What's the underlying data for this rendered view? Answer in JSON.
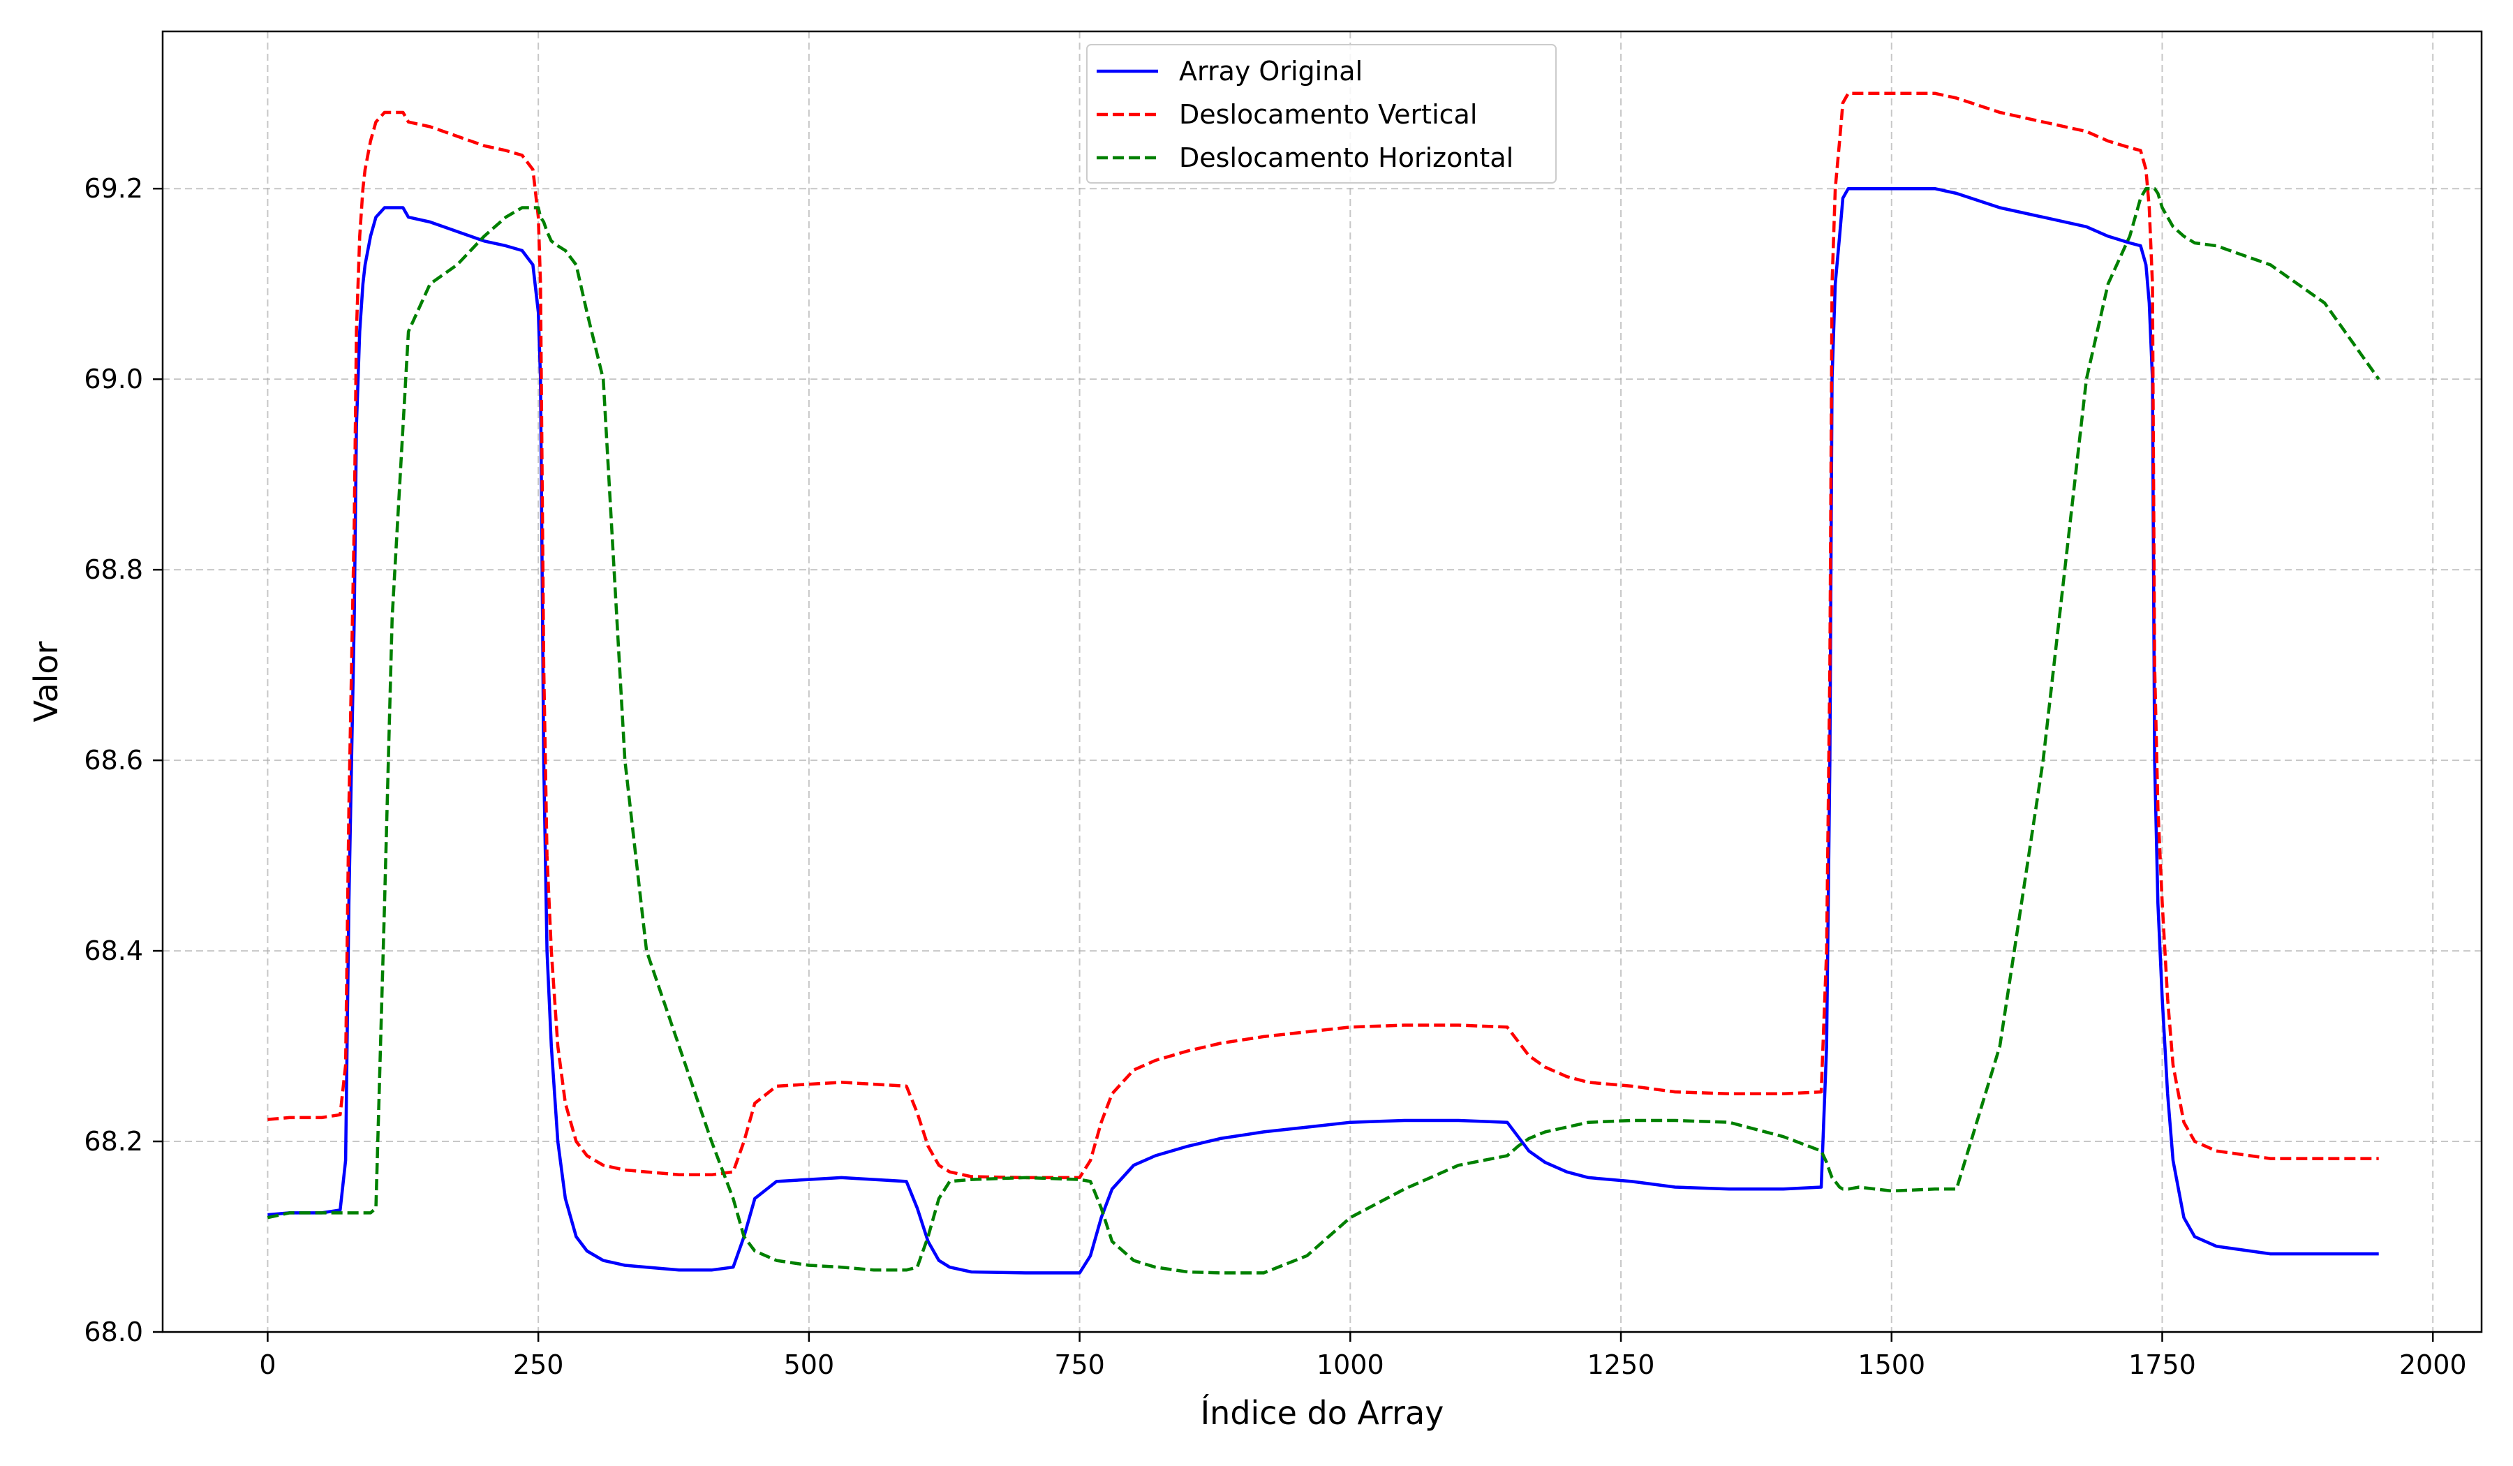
{
  "chart_data": {
    "type": "line",
    "title": "",
    "xlabel": "Índice do Array",
    "ylabel": "Valor",
    "xlim": [
      -97,
      2045
    ],
    "ylim": [
      68.0,
      69.365
    ],
    "xticks": [
      0,
      250,
      500,
      750,
      1000,
      1250,
      1500,
      1750,
      2000
    ],
    "xtick_labels": [
      "0",
      "250",
      "500",
      "750",
      "1000",
      "1250",
      "1500",
      "1750",
      "2000"
    ],
    "yticks": [
      68.0,
      68.2,
      68.4,
      68.6,
      68.8,
      69.0,
      69.2
    ],
    "ytick_labels": [
      "68.0",
      "68.2",
      "68.4",
      "68.6",
      "68.8",
      "69.0",
      "69.2"
    ],
    "grid": true,
    "legend_position": "top-center",
    "series": [
      {
        "name": "Array Original",
        "color": "#0000ff",
        "dash": "solid",
        "x": [
          0,
          20,
          50,
          67,
          72,
          75,
          80,
          82,
          85,
          88,
          90,
          95,
          100,
          108,
          115,
          125,
          130,
          150,
          175,
          200,
          220,
          235,
          245,
          250,
          252,
          255,
          258,
          262,
          268,
          275,
          285,
          295,
          310,
          330,
          350,
          380,
          410,
          430,
          440,
          450,
          470,
          500,
          530,
          560,
          590,
          600,
          610,
          620,
          630,
          650,
          700,
          750,
          760,
          770,
          780,
          800,
          820,
          850,
          880,
          920,
          960,
          1000,
          1050,
          1100,
          1145,
          1155,
          1165,
          1180,
          1200,
          1220,
          1260,
          1300,
          1350,
          1400,
          1435,
          1440,
          1443,
          1445,
          1448,
          1452,
          1455,
          1460,
          1470,
          1500,
          1540,
          1560,
          1600,
          1640,
          1680,
          1700,
          1720,
          1730,
          1735,
          1738,
          1741,
          1743,
          1746,
          1750,
          1755,
          1760,
          1770,
          1780,
          1800,
          1850,
          1900,
          1950
        ],
        "y": [
          68.123,
          68.125,
          68.125,
          68.128,
          68.18,
          68.45,
          68.75,
          68.95,
          69.05,
          69.1,
          69.12,
          69.15,
          69.17,
          69.18,
          69.18,
          69.18,
          69.17,
          69.165,
          69.155,
          69.145,
          69.14,
          69.135,
          69.12,
          69.07,
          69.0,
          68.6,
          68.4,
          68.3,
          68.2,
          68.14,
          68.1,
          68.085,
          68.075,
          68.07,
          68.068,
          68.065,
          68.065,
          68.068,
          68.1,
          68.14,
          68.158,
          68.16,
          68.162,
          68.16,
          68.158,
          68.13,
          68.095,
          68.075,
          68.068,
          68.063,
          68.062,
          68.062,
          68.08,
          68.12,
          68.15,
          68.175,
          68.185,
          68.195,
          68.203,
          68.21,
          68.215,
          68.22,
          68.222,
          68.222,
          68.22,
          68.205,
          68.19,
          68.178,
          68.168,
          68.162,
          68.158,
          68.152,
          68.15,
          68.15,
          68.152,
          68.3,
          68.6,
          69.0,
          69.1,
          69.15,
          69.19,
          69.2,
          69.2,
          69.2,
          69.2,
          69.195,
          69.18,
          69.17,
          69.16,
          69.15,
          69.143,
          69.14,
          69.12,
          69.08,
          69.0,
          68.6,
          68.45,
          68.35,
          68.25,
          68.18,
          68.12,
          68.1,
          68.09,
          68.082,
          68.082,
          68.082
        ]
      },
      {
        "name": "Deslocamento Vertical",
        "color": "#ff0000",
        "dash": "dashed",
        "x": [
          0,
          20,
          50,
          67,
          72,
          75,
          80,
          82,
          85,
          88,
          90,
          95,
          100,
          108,
          115,
          125,
          130,
          150,
          175,
          200,
          220,
          235,
          245,
          250,
          252,
          255,
          258,
          262,
          268,
          275,
          285,
          295,
          310,
          330,
          350,
          380,
          410,
          430,
          440,
          450,
          470,
          500,
          530,
          560,
          590,
          600,
          610,
          620,
          630,
          650,
          700,
          750,
          760,
          770,
          780,
          800,
          820,
          850,
          880,
          920,
          960,
          1000,
          1050,
          1100,
          1145,
          1155,
          1165,
          1180,
          1200,
          1220,
          1260,
          1300,
          1350,
          1400,
          1435,
          1440,
          1443,
          1445,
          1448,
          1452,
          1455,
          1460,
          1470,
          1500,
          1540,
          1560,
          1600,
          1640,
          1680,
          1700,
          1720,
          1730,
          1735,
          1738,
          1741,
          1743,
          1746,
          1750,
          1755,
          1760,
          1770,
          1780,
          1800,
          1850,
          1900,
          1950
        ],
        "y": [
          68.223,
          68.225,
          68.225,
          68.228,
          68.28,
          68.55,
          68.85,
          69.05,
          69.15,
          69.2,
          69.22,
          69.25,
          69.27,
          69.28,
          69.28,
          69.28,
          69.27,
          69.265,
          69.255,
          69.245,
          69.24,
          69.235,
          69.22,
          69.17,
          69.1,
          68.7,
          68.5,
          68.4,
          68.3,
          68.24,
          68.2,
          68.185,
          68.175,
          68.17,
          68.168,
          68.165,
          68.165,
          68.168,
          68.2,
          68.24,
          68.258,
          68.26,
          68.262,
          68.26,
          68.258,
          68.23,
          68.195,
          68.175,
          68.168,
          68.163,
          68.162,
          68.162,
          68.18,
          68.22,
          68.25,
          68.275,
          68.285,
          68.295,
          68.303,
          68.31,
          68.315,
          68.32,
          68.322,
          68.322,
          68.32,
          68.305,
          68.29,
          68.278,
          68.268,
          68.262,
          68.258,
          68.252,
          68.25,
          68.25,
          68.252,
          68.4,
          68.7,
          69.1,
          69.2,
          69.25,
          69.29,
          69.3,
          69.3,
          69.3,
          69.3,
          69.295,
          69.28,
          69.27,
          69.26,
          69.25,
          69.243,
          69.24,
          69.22,
          69.18,
          69.1,
          68.7,
          68.55,
          68.45,
          68.35,
          68.28,
          68.22,
          68.2,
          68.19,
          68.182,
          68.182,
          68.182
        ]
      },
      {
        "name": "Deslocamento Horizontal",
        "color": "#008000",
        "dash": "dashed",
        "x": [
          0,
          20,
          50,
          67,
          72,
          75,
          80,
          82,
          85,
          88,
          90,
          95,
          100,
          108,
          115,
          125,
          130,
          150,
          175,
          200,
          220,
          235,
          245,
          250,
          252,
          255,
          258,
          262,
          268,
          275,
          285,
          295,
          310,
          330,
          350,
          380,
          410,
          430,
          440,
          450,
          470,
          500,
          530,
          560,
          590,
          600,
          610,
          620,
          630,
          650,
          700,
          750,
          760,
          770,
          780,
          800,
          820,
          850,
          880,
          920,
          960,
          1000,
          1050,
          1100,
          1145,
          1155,
          1165,
          1180,
          1200,
          1220,
          1260,
          1300,
          1350,
          1400,
          1435,
          1440,
          1443,
          1445,
          1448,
          1452,
          1455,
          1460,
          1470,
          1500,
          1540,
          1560,
          1600,
          1640,
          1680,
          1700,
          1720,
          1730,
          1735,
          1738,
          1741,
          1743,
          1746,
          1750,
          1755,
          1760,
          1770,
          1780,
          1800,
          1850,
          1900,
          1950
        ],
        "y": [
          68.12,
          68.125,
          68.125,
          68.125,
          68.125,
          68.125,
          68.125,
          68.125,
          68.125,
          68.125,
          68.125,
          68.125,
          68.13,
          68.45,
          68.75,
          68.95,
          69.05,
          69.1,
          69.12,
          69.15,
          69.17,
          69.18,
          69.18,
          69.18,
          69.17,
          69.165,
          69.155,
          69.145,
          69.14,
          69.135,
          69.12,
          69.07,
          69.0,
          68.6,
          68.4,
          68.3,
          68.2,
          68.14,
          68.1,
          68.085,
          68.075,
          68.07,
          68.068,
          68.065,
          68.065,
          68.068,
          68.1,
          68.14,
          68.158,
          68.16,
          68.162,
          68.16,
          68.158,
          68.13,
          68.095,
          68.075,
          68.068,
          68.063,
          68.062,
          68.062,
          68.08,
          68.12,
          68.15,
          68.175,
          68.185,
          68.195,
          68.203,
          68.21,
          68.215,
          68.22,
          68.222,
          68.222,
          68.22,
          68.205,
          68.19,
          68.178,
          68.168,
          68.162,
          68.158,
          68.152,
          68.15,
          68.15,
          68.152,
          68.148,
          68.15,
          68.15,
          68.3,
          68.6,
          69.0,
          69.1,
          69.15,
          69.19,
          69.2,
          69.2,
          69.2,
          69.2,
          69.195,
          69.18,
          69.17,
          69.16,
          69.15,
          69.143,
          69.14,
          69.12,
          69.08,
          69.0
        ]
      }
    ]
  }
}
